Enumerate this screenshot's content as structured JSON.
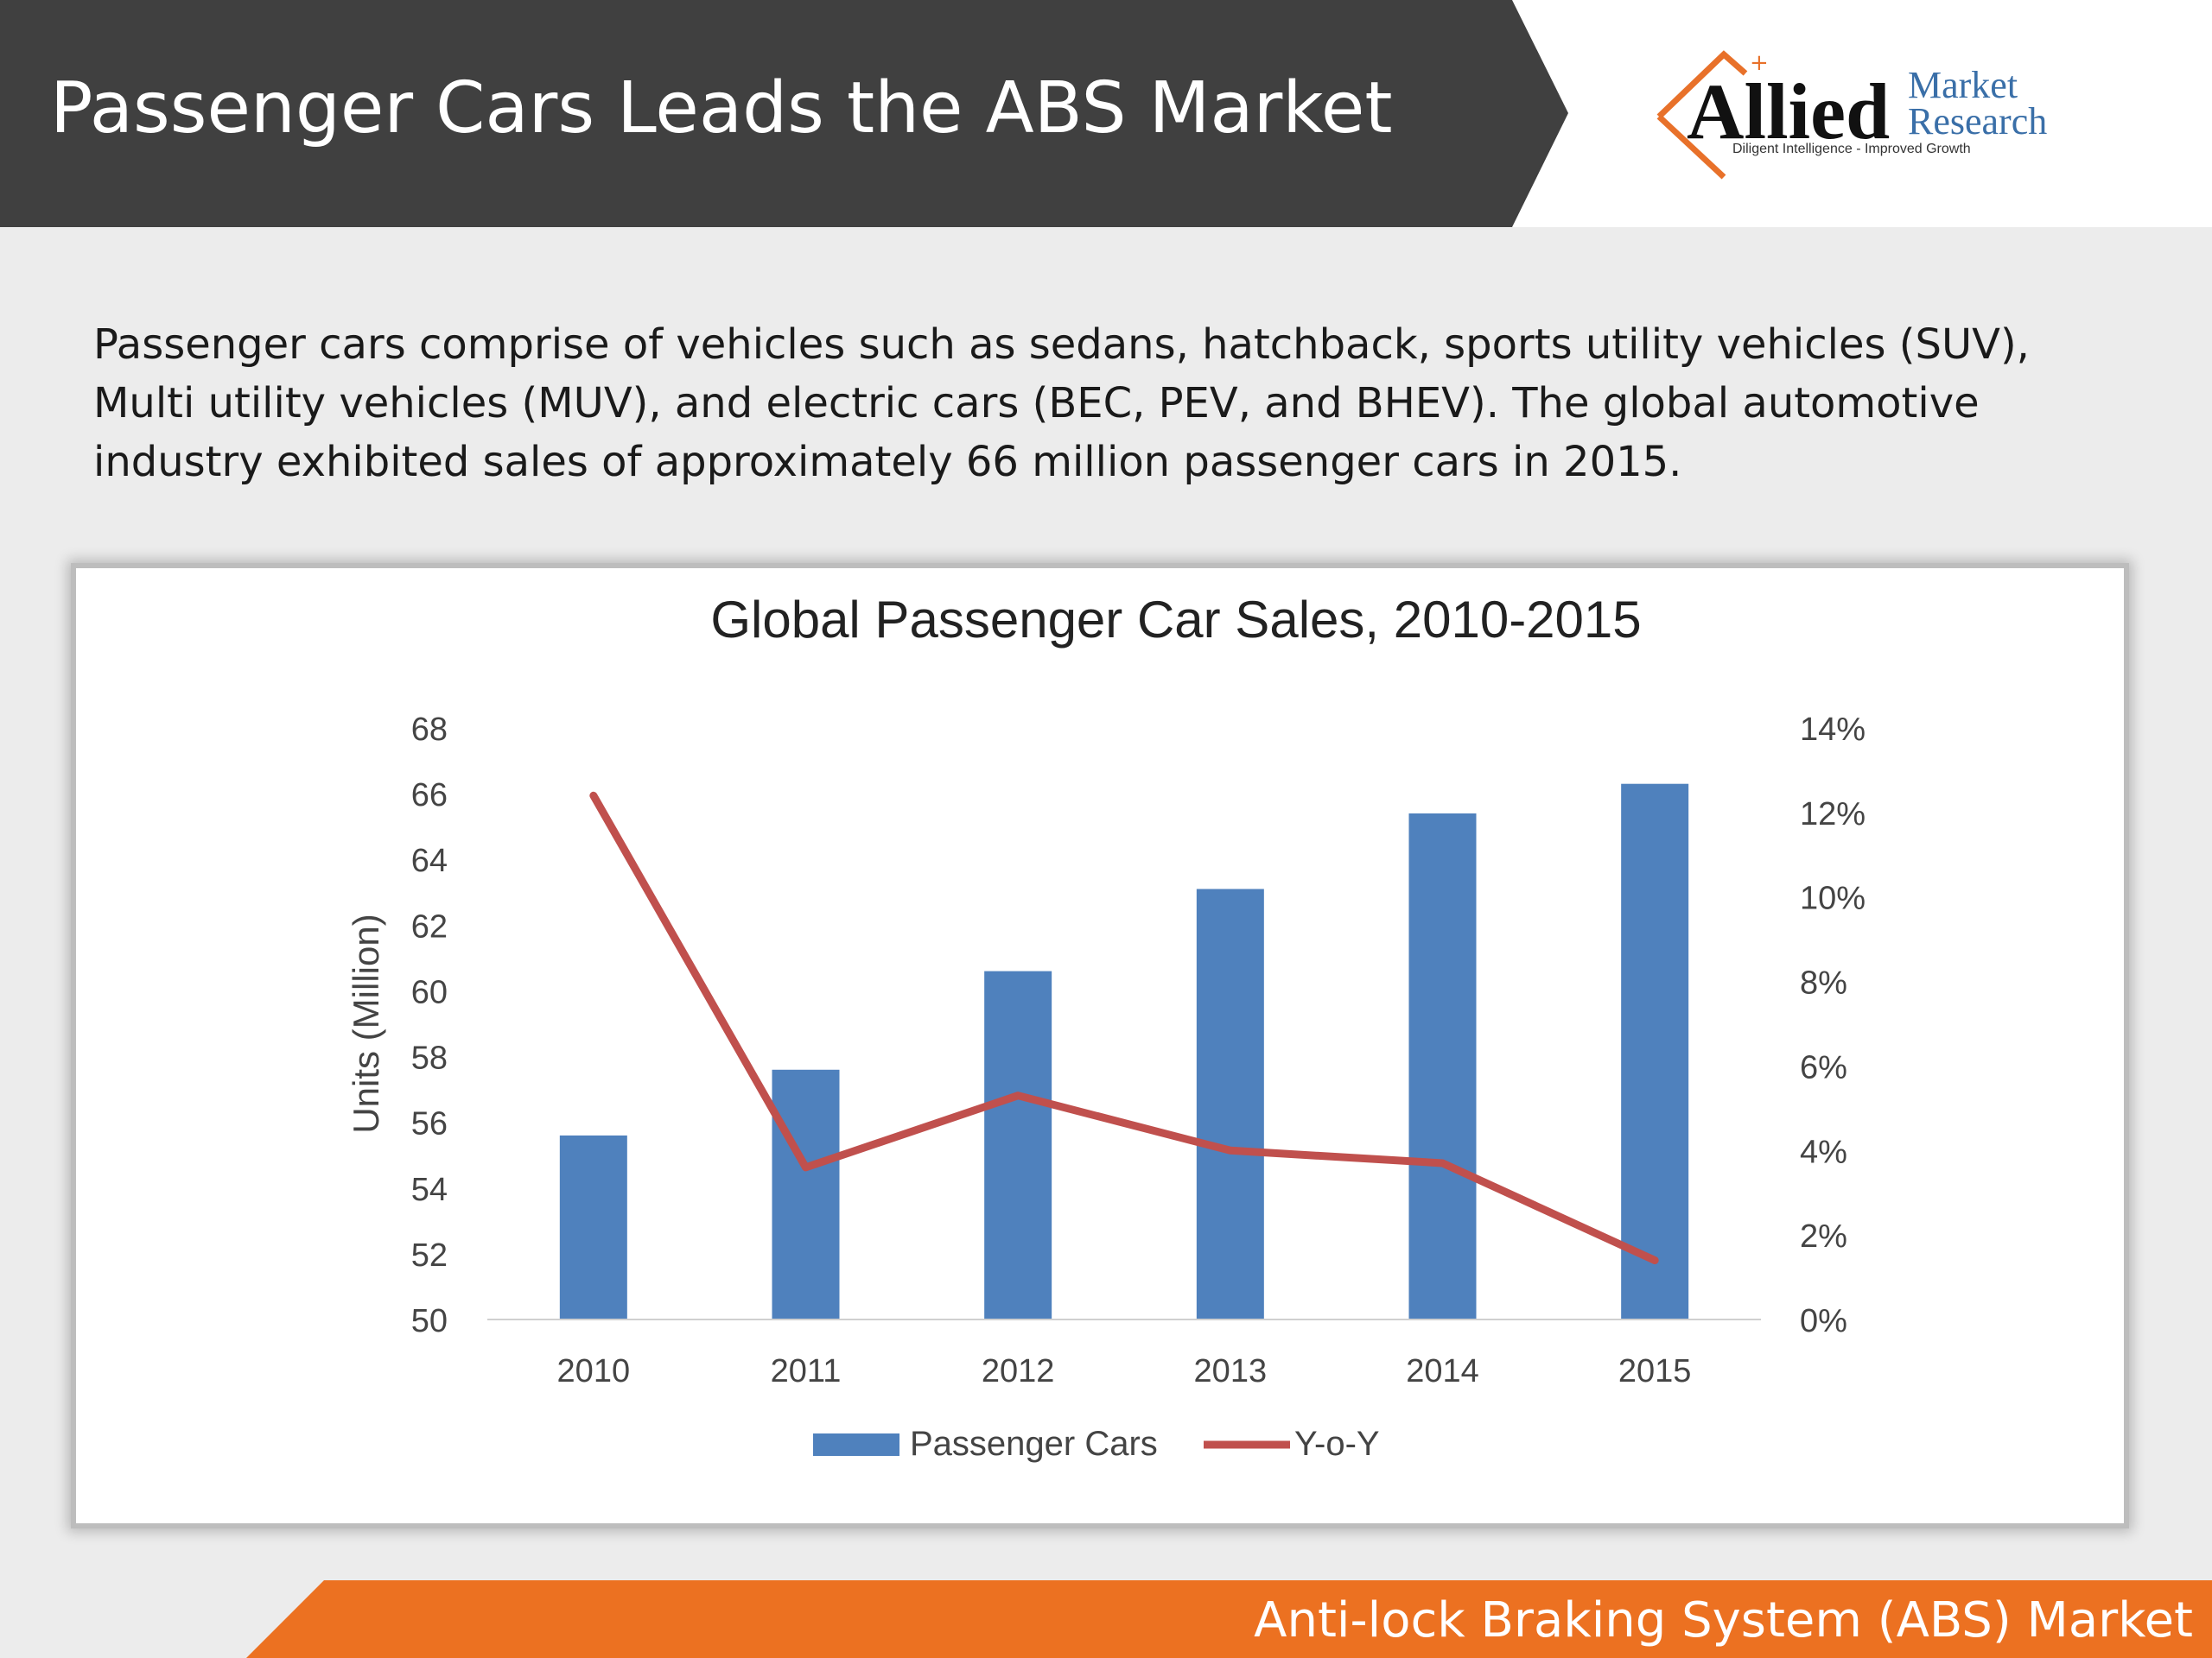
{
  "header": {
    "title": "Passenger Cars Leads the ABS Market"
  },
  "logo": {
    "word": "Allied",
    "line1": "Market",
    "line2": "Research",
    "tagline": "Diligent Intelligence - Improved Growth"
  },
  "intro": {
    "text": "Passenger cars comprise of vehicles such as sedans, hatchback, sports utility vehicles (SUV), Multi utility vehicles (MUV), and electric cars (BEC, PEV, and BHEV). The global automotive industry exhibited sales of approximately 66 million passenger cars in 2015."
  },
  "footer": {
    "text": "Anti-lock Braking System (ABS) Market"
  },
  "colors": {
    "bar": "#4f81bd",
    "line": "#c0504d",
    "header_bg": "#404040",
    "footer_bg": "#ec7121",
    "logo_orange": "#e8712a",
    "logo_blue": "#3a6fa8"
  },
  "chart_data": {
    "type": "bar",
    "title": "Global Passenger Car Sales, 2010-2015",
    "ylabel": "Units (Million)",
    "categories": [
      "2010",
      "2011",
      "2012",
      "2013",
      "2014",
      "2015"
    ],
    "ylim": [
      50,
      68
    ],
    "yticks": [
      "50",
      "52",
      "54",
      "56",
      "58",
      "60",
      "62",
      "64",
      "66",
      "68"
    ],
    "y2lim": [
      0,
      14
    ],
    "y2ticks": [
      "0%",
      "2%",
      "4%",
      "6%",
      "8%",
      "10%",
      "12%",
      "14%"
    ],
    "series": [
      {
        "name": "Passenger Cars",
        "type": "bar",
        "axis": "left",
        "values": [
          55.6,
          57.6,
          60.6,
          63.1,
          65.4,
          66.3
        ]
      },
      {
        "name": "Y-o-Y",
        "type": "line",
        "axis": "right",
        "values": [
          12.4,
          3.6,
          5.3,
          4.0,
          3.7,
          1.4
        ]
      }
    ],
    "legend": "bottom",
    "grid": false
  }
}
